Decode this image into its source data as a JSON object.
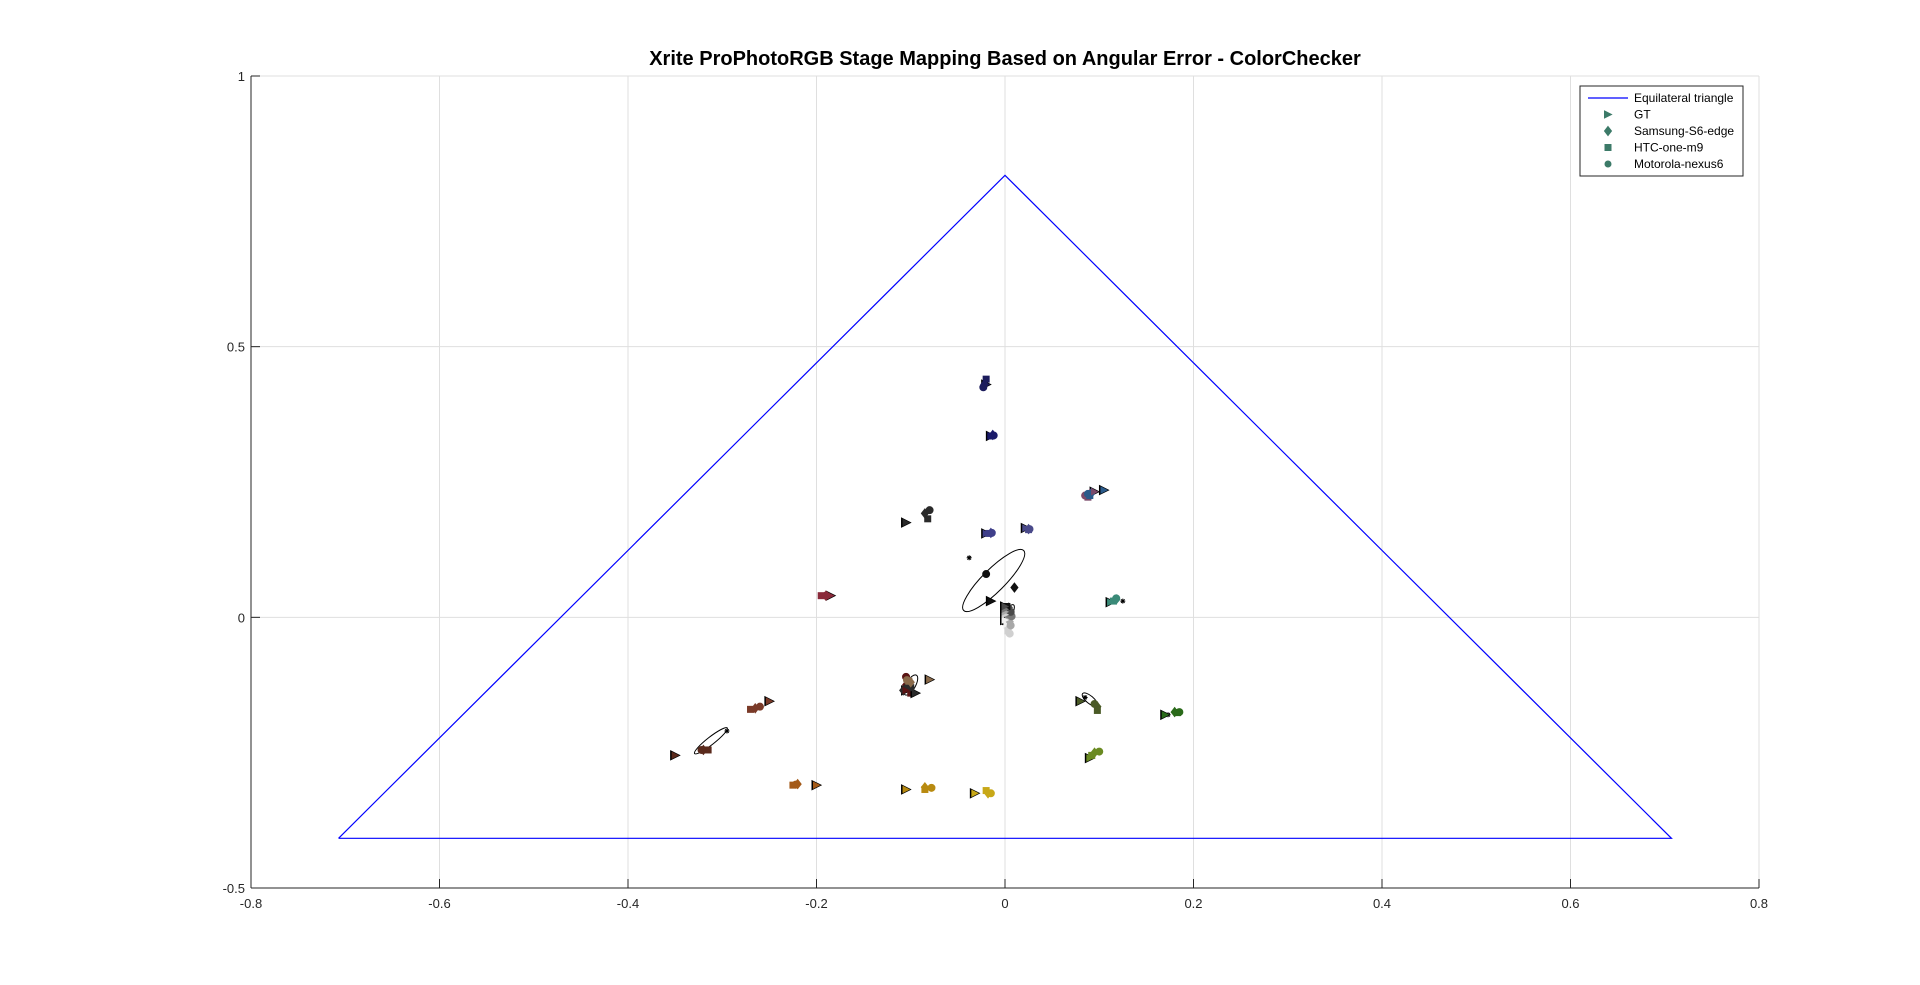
{
  "chart_data": {
    "type": "scatter",
    "title": "Xrite ProPhotoRGB Stage Mapping Based on Angular Error - ColorChecker",
    "xlabel": "",
    "ylabel": "",
    "xlim": [
      -0.8,
      0.8
    ],
    "ylim": [
      -0.5,
      1
    ],
    "x_ticks": [
      "-0.8",
      "-0.6",
      "-0.4",
      "-0.2",
      "0",
      "0.2",
      "0.4",
      "0.6",
      "0.8"
    ],
    "y_ticks": [
      "-0.5",
      "0",
      "0.5",
      "1"
    ],
    "grid": true,
    "legend_position": "top-right",
    "colors": {
      "triangle": "#0000ff",
      "legend_marker": "#3c7a68",
      "grid": "#dfdfdf",
      "axis": "#262626"
    },
    "triangle": {
      "name": "Equilateral triangle",
      "vertices": [
        [
          -0.7071,
          -0.4082
        ],
        [
          0,
          0.8165
        ],
        [
          0.7071,
          -0.4082
        ],
        [
          -0.7071,
          -0.4082
        ]
      ]
    },
    "legend": [
      {
        "label": "Equilateral triangle",
        "marker": "line"
      },
      {
        "label": "GT",
        "marker": "triangle-right"
      },
      {
        "label": "Samsung-S6-edge",
        "marker": "diamond"
      },
      {
        "label": "HTC-one-m9",
        "marker": "square"
      },
      {
        "label": "Motorola-nexus6",
        "marker": "circle"
      }
    ],
    "patches": [
      {
        "color": "#5a2a1c",
        "gt": [
          -0.35,
          -0.255
        ],
        "s6": [
          -0.32,
          -0.245
        ],
        "htc": [
          -0.315,
          -0.245
        ],
        "nexus": [
          -0.322,
          -0.245
        ],
        "star": [
          -0.295,
          -0.21
        ]
      },
      {
        "color": "#7a3a28",
        "gt": [
          -0.25,
          -0.155
        ],
        "s6": [
          -0.265,
          -0.168
        ],
        "htc": [
          -0.27,
          -0.17
        ],
        "nexus": [
          -0.26,
          -0.165
        ]
      },
      {
        "color": "#3f3f8a",
        "gt": [
          -0.02,
          0.155
        ],
        "s6": [
          -0.015,
          0.156
        ],
        "htc": [
          -0.017,
          0.155
        ],
        "nexus": [
          -0.014,
          0.156
        ]
      },
      {
        "color": "#4a5a26",
        "gt": [
          0.08,
          -0.155
        ],
        "s6": [
          0.098,
          -0.165
        ],
        "htc": [
          0.098,
          -0.172
        ],
        "nexus": [
          0.095,
          -0.16
        ],
        "star": [
          0.085,
          -0.148
        ]
      },
      {
        "color": "#4a4a8a",
        "gt": [
          0.022,
          0.165
        ],
        "s6": [
          0.025,
          0.163
        ],
        "htc": [
          0.025,
          0.162
        ],
        "nexus": [
          0.026,
          0.163
        ]
      },
      {
        "color": "#3a8a78",
        "gt": [
          0.112,
          0.028
        ],
        "s6": [
          0.118,
          0.033
        ],
        "htc": [
          0.115,
          0.03
        ],
        "nexus": [
          0.118,
          0.035
        ],
        "star": [
          0.125,
          0.03
        ]
      },
      {
        "color": "#a45a18",
        "gt": [
          -0.2,
          -0.31
        ],
        "s6": [
          -0.22,
          -0.308
        ],
        "htc": [
          -0.225,
          -0.31
        ],
        "nexus": [
          -0.222,
          -0.309
        ]
      },
      {
        "color": "#1c1c5c",
        "gt": [
          -0.02,
          0.43
        ],
        "s6": [
          -0.022,
          0.43
        ],
        "htc": [
          -0.02,
          0.44
        ],
        "nexus": [
          -0.023,
          0.425
        ]
      },
      {
        "color": "#8a2a3a",
        "gt": [
          -0.185,
          0.04
        ],
        "s6": [
          -0.19,
          0.04
        ],
        "htc": [
          -0.195,
          0.04
        ],
        "nexus": [
          -0.19,
          0.04
        ]
      },
      {
        "color": "#2a2a2a",
        "gt": [
          -0.105,
          0.175
        ],
        "s6": [
          -0.085,
          0.192
        ],
        "htc": [
          -0.082,
          0.182
        ],
        "nexus": [
          -0.08,
          0.198
        ]
      },
      {
        "color": "#6a8a22",
        "gt": [
          0.09,
          -0.26
        ],
        "s6": [
          0.095,
          -0.25
        ],
        "htc": [
          0.092,
          -0.255
        ],
        "nexus": [
          0.1,
          -0.248
        ]
      },
      {
        "color": "#b88a10",
        "gt": [
          -0.105,
          -0.318
        ],
        "s6": [
          -0.085,
          -0.314
        ],
        "htc": [
          -0.085,
          -0.318
        ],
        "nexus": [
          -0.078,
          -0.315
        ]
      },
      {
        "color": "#1a1a6a",
        "gt": [
          -0.015,
          0.335
        ],
        "s6": [
          -0.013,
          0.337
        ],
        "htc": [
          -0.015,
          0.335
        ],
        "nexus": [
          -0.012,
          0.336
        ]
      },
      {
        "color": "#2a6a1a",
        "gt": [
          0.17,
          -0.18
        ],
        "s6": [
          0.18,
          -0.175
        ],
        "htc": [
          0.183,
          -0.176
        ],
        "nexus": [
          0.185,
          -0.175
        ],
        "star": [
          0.173,
          -0.18
        ]
      },
      {
        "color": "#5a1414",
        "gt": [
          -0.105,
          -0.135
        ],
        "s6": [
          -0.105,
          -0.125
        ],
        "htc": [
          -0.1,
          -0.14
        ],
        "nexus": [
          -0.105,
          -0.11
        ]
      },
      {
        "color": "#c8a818",
        "gt": [
          -0.032,
          -0.325
        ],
        "s6": [
          -0.018,
          -0.325
        ],
        "htc": [
          -0.02,
          -0.32
        ],
        "nexus": [
          -0.015,
          -0.325
        ]
      },
      {
        "color": "#7a4a6a",
        "gt": [
          0.095,
          0.232
        ],
        "s6": [
          0.09,
          0.228
        ],
        "htc": [
          0.088,
          0.222
        ],
        "nexus": [
          0.085,
          0.225
        ]
      },
      {
        "color": "#2a5a8a",
        "gt": [
          0.105,
          0.235
        ],
        "s6": [
          0.092,
          0.23
        ],
        "htc": [
          0.09,
          0.225
        ],
        "nexus": [
          0.088,
          0.228
        ]
      },
      {
        "color": "#f0f0f0",
        "gt": [
          0,
          -0.005
        ],
        "s6": [
          0.003,
          -0.01
        ],
        "htc": [
          0.002,
          -0.015
        ],
        "nexus": [
          0.004,
          -0.012
        ]
      },
      {
        "color": "#d0d0d0",
        "gt": [
          0,
          0.005
        ],
        "s6": [
          0.004,
          -0.02
        ],
        "htc": [
          0.003,
          -0.025
        ],
        "nexus": [
          0.005,
          -0.03
        ]
      },
      {
        "color": "#a8a8a8",
        "gt": [
          0,
          0.01
        ],
        "s6": [
          0.005,
          -0.008
        ],
        "htc": [
          0.004,
          0.0
        ],
        "nexus": [
          0.006,
          -0.015
        ]
      },
      {
        "color": "#787878",
        "gt": [
          0,
          0.015
        ],
        "s6": [
          0.006,
          0.008
        ],
        "htc": [
          0.005,
          0.005
        ],
        "nexus": [
          0.007,
          0.002
        ]
      },
      {
        "color": "#4a4a4a",
        "gt": [
          0,
          0.02
        ],
        "s6": [
          0.004,
          0.018
        ],
        "htc": [
          0.003,
          0.012
        ],
        "nexus": [
          0.006,
          0.01
        ]
      },
      {
        "color": "#111111",
        "gt": [
          -0.015,
          0.03
        ],
        "s6": [
          0.01,
          0.055
        ],
        "htc": [
          0.002,
          0.02
        ],
        "nexus": [
          -0.02,
          0.08
        ],
        "star": [
          -0.038,
          0.11
        ]
      },
      {
        "color": "#2a2a2a",
        "gt": [
          -0.095,
          -0.14
        ],
        "s6": [
          -0.108,
          -0.135
        ],
        "htc": [
          -0.1,
          -0.13
        ],
        "nexus": [
          -0.103,
          -0.128
        ]
      },
      {
        "color": "#8a6a4a",
        "gt": [
          -0.08,
          -0.115
        ],
        "s6": [
          -0.1,
          -0.12
        ],
        "htc": [
          -0.102,
          -0.118
        ],
        "nexus": [
          -0.104,
          -0.116
        ]
      }
    ],
    "ellipses": [
      {
        "cx": -0.012,
        "cy": 0.068,
        "rx": 0.045,
        "ry": 0.012,
        "angle_deg": 45
      },
      {
        "cx": -0.312,
        "cy": -0.228,
        "rx": 0.022,
        "ry": 0.004,
        "angle_deg": 38
      },
      {
        "cx": 0.09,
        "cy": -0.152,
        "rx": 0.01,
        "ry": 0.004,
        "angle_deg": -40
      },
      {
        "cx": -0.1,
        "cy": -0.125,
        "rx": 0.012,
        "ry": 0.005,
        "angle_deg": 60
      },
      {
        "cx": 0.003,
        "cy": 0.005,
        "rx": 0.012,
        "ry": 0.004,
        "angle_deg": 60
      }
    ]
  }
}
